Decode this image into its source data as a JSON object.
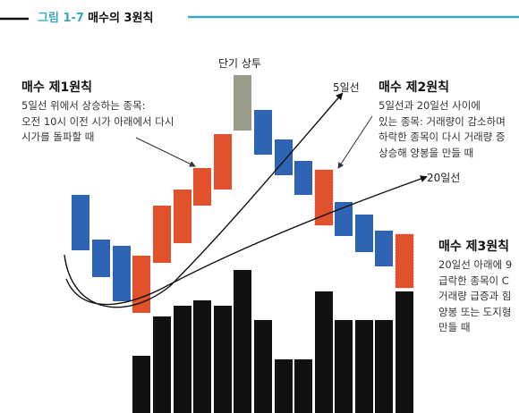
{
  "caption": {
    "figure": "그림 1-7",
    "title": "매수의 3원칙"
  },
  "labels": {
    "short_term_top": "단기 상투",
    "ma5": "5일선",
    "ma20": "20일선"
  },
  "rule1": {
    "title": "매수 제1원칙",
    "lines": [
      "5일선 위에서 상승하는 종목:",
      "오전 10시 이전 시가 아래에서 다시",
      "시가를 돌파할 때"
    ]
  },
  "rule2": {
    "title": "매수 제2원칙",
    "lines": [
      "5일선과 20일선 사이에",
      "있는 종목: 거래량이 감소하며",
      "하락한 종목이 다시 거래량 증",
      "상승해 양봉을 만들 때"
    ]
  },
  "rule3": {
    "title": "매수 제3원칙",
    "lines": [
      "20일선 아래에 9",
      "급락한 종목이 C",
      "거래량 급증과 힘",
      "양봉 또는 도지형",
      "만들 때"
    ]
  },
  "colors": {
    "bullish": "#e0512c",
    "bearish": "#2f64b5",
    "neutral": "#9a9b8a",
    "volume": "#111111",
    "accent": "#3aaab8"
  }
}
